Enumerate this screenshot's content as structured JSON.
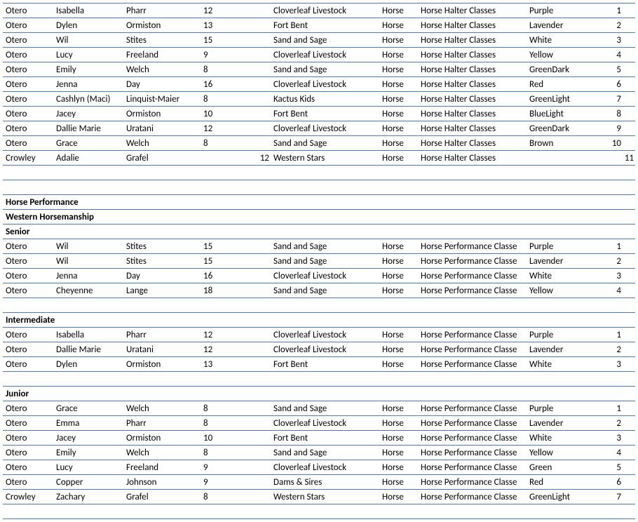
{
  "colors": {
    "border": "#4a7ebb",
    "text": "#000000",
    "background": "#ffffff"
  },
  "sections": {
    "hp": "Horse Performance",
    "wh": "Western Horsemanship",
    "sr": "Senior",
    "im": "Intermediate",
    "jr": "Junior"
  },
  "top": [
    {
      "cty": "Otero",
      "fn": "Isabella",
      "ln": "Pharr",
      "age": "12",
      "club": "Cloverleaf Livestock",
      "an": "Horse",
      "cl": "Horse Halter Classes",
      "rb": "Purple",
      "pl": "1"
    },
    {
      "cty": "Otero",
      "fn": "Dylen",
      "ln": "Ormiston",
      "age": "13",
      "club": "Fort Bent",
      "an": "Horse",
      "cl": "Horse Halter Classes",
      "rb": "Lavender",
      "pl": "2"
    },
    {
      "cty": "Otero",
      "fn": "Wil",
      "ln": "Stites",
      "age": "15",
      "club": "Sand and Sage",
      "an": "Horse",
      "cl": "Horse Halter Classes",
      "rb": "White",
      "pl": "3"
    },
    {
      "cty": "Otero",
      "fn": "Lucy",
      "ln": "Freeland",
      "age": "9",
      "club": "Cloverleaf Livestock",
      "an": "Horse",
      "cl": "Horse Halter Classes",
      "rb": "Yellow",
      "pl": "4"
    },
    {
      "cty": "Otero",
      "fn": "Emily",
      "ln": "Welch",
      "age": "8",
      "club": "Sand and Sage",
      "an": "Horse",
      "cl": "Horse Halter Classes",
      "rb": "GreenDark",
      "pl": "5"
    },
    {
      "cty": "Otero",
      "fn": "Jenna",
      "ln": "Day",
      "age": "16",
      "club": "Cloverleaf Livestock",
      "an": "Horse",
      "cl": "Horse Halter Classes",
      "rb": "Red",
      "pl": "6"
    },
    {
      "cty": "Otero",
      "fn": "Cashlyn (Maci)",
      "ln": "Linquist-Maier",
      "age": "8",
      "club": "Kactus Kids",
      "an": "Horse",
      "cl": "Horse Halter Classes",
      "rb": "GreenLight",
      "pl": "7"
    },
    {
      "cty": "Otero",
      "fn": "Jacey",
      "ln": "Ormiston",
      "age": "10",
      "club": "Fort Bent",
      "an": "Horse",
      "cl": "Horse Halter Classes",
      "rb": "BlueLight",
      "pl": "8"
    },
    {
      "cty": "Otero",
      "fn": "Dallie Marie",
      "ln": "Uratani",
      "age": "12",
      "club": "Cloverleaf Livestock",
      "an": "Horse",
      "cl": "Horse Halter Classes",
      "rb": "GreenDark",
      "pl": "9"
    },
    {
      "cty": "Otero",
      "fn": "Grace",
      "ln": "Welch",
      "age": "8",
      "club": "Sand and Sage",
      "an": "Horse",
      "cl": "Horse Halter Classes",
      "rb": "Brown",
      "pl": "10"
    }
  ],
  "top_last": {
    "cty": "Crowley",
    "fn": "Adalie",
    "ln": "Grafel",
    "age": "12",
    "club": "Western Stars",
    "an": "Horse",
    "cl": "Horse Halter Classes",
    "rb": "",
    "pl": "11"
  },
  "senior": [
    {
      "cty": "Otero",
      "fn": "Wil",
      "ln": "Stites",
      "age": "15",
      "club": "Sand and Sage",
      "an": "Horse",
      "cl": "Horse Performance Classe",
      "rb": "Purple",
      "pl": "1"
    },
    {
      "cty": "Otero",
      "fn": "Wil",
      "ln": "Stites",
      "age": "15",
      "club": "Sand and Sage",
      "an": "Horse",
      "cl": "Horse Performance Classe",
      "rb": "Lavender",
      "pl": "2"
    },
    {
      "cty": "Otero",
      "fn": "Jenna",
      "ln": "Day",
      "age": "16",
      "club": "Cloverleaf Livestock",
      "an": "Horse",
      "cl": "Horse Performance Classe",
      "rb": "White",
      "pl": "3"
    },
    {
      "cty": "Otero",
      "fn": "Cheyenne",
      "ln": "Lange",
      "age": "18",
      "club": "Sand and Sage",
      "an": "Horse",
      "cl": "Horse Performance Classe",
      "rb": "Yellow",
      "pl": "4"
    }
  ],
  "intermediate": [
    {
      "cty": "Otero",
      "fn": "Isabella",
      "ln": "Pharr",
      "age": "12",
      "club": "Cloverleaf Livestock",
      "an": "Horse",
      "cl": "Horse Performance Classe",
      "rb": "Purple",
      "pl": "1"
    },
    {
      "cty": "Otero",
      "fn": "Dallie Marie",
      "ln": "Uratani",
      "age": "12",
      "club": "Cloverleaf Livestock",
      "an": "Horse",
      "cl": "Horse Performance Classe",
      "rb": "Lavender",
      "pl": "2"
    },
    {
      "cty": "Otero",
      "fn": "Dylen",
      "ln": "Ormiston",
      "age": "13",
      "club": "Fort Bent",
      "an": "Horse",
      "cl": "Horse Performance Classe",
      "rb": "White",
      "pl": "3"
    }
  ],
  "junior": [
    {
      "cty": "Otero",
      "fn": "Grace",
      "ln": "Welch",
      "age": "8",
      "club": "Sand and Sage",
      "an": "Horse",
      "cl": "Horse Performance Classe",
      "rb": "Purple",
      "pl": "1"
    },
    {
      "cty": "Otero",
      "fn": "Emma",
      "ln": "Pharr",
      "age": "8",
      "club": "Cloverleaf Livestock",
      "an": "Horse",
      "cl": "Horse Performance Classe",
      "rb": "Lavender",
      "pl": "2"
    },
    {
      "cty": "Otero",
      "fn": "Jacey",
      "ln": "Ormiston",
      "age": "10",
      "club": "Fort Bent",
      "an": "Horse",
      "cl": "Horse Performance Classe",
      "rb": "White",
      "pl": "3"
    },
    {
      "cty": "Otero",
      "fn": "Emily",
      "ln": "Welch",
      "age": "8",
      "club": "Sand and Sage",
      "an": "Horse",
      "cl": "Horse Performance Classe",
      "rb": "Yellow",
      "pl": "4"
    },
    {
      "cty": "Otero",
      "fn": "Lucy",
      "ln": "Freeland",
      "age": "9",
      "club": "Cloverleaf Livestock",
      "an": "Horse",
      "cl": "Horse Performance Classe",
      "rb": "Green",
      "pl": "5"
    },
    {
      "cty": "Otero",
      "fn": "Copper",
      "ln": "Johnson",
      "age": "9",
      "club": "Dams & Sires",
      "an": "Horse",
      "cl": "Horse Performance Classe",
      "rb": "Red",
      "pl": "6"
    },
    {
      "cty": "Crowley",
      "fn": "Zachary",
      "ln": "Grafel",
      "age": "8",
      "club": "Western Stars",
      "an": "Horse",
      "cl": "Horse Performance Classe",
      "rb": "GreenLight",
      "pl": "7"
    }
  ]
}
